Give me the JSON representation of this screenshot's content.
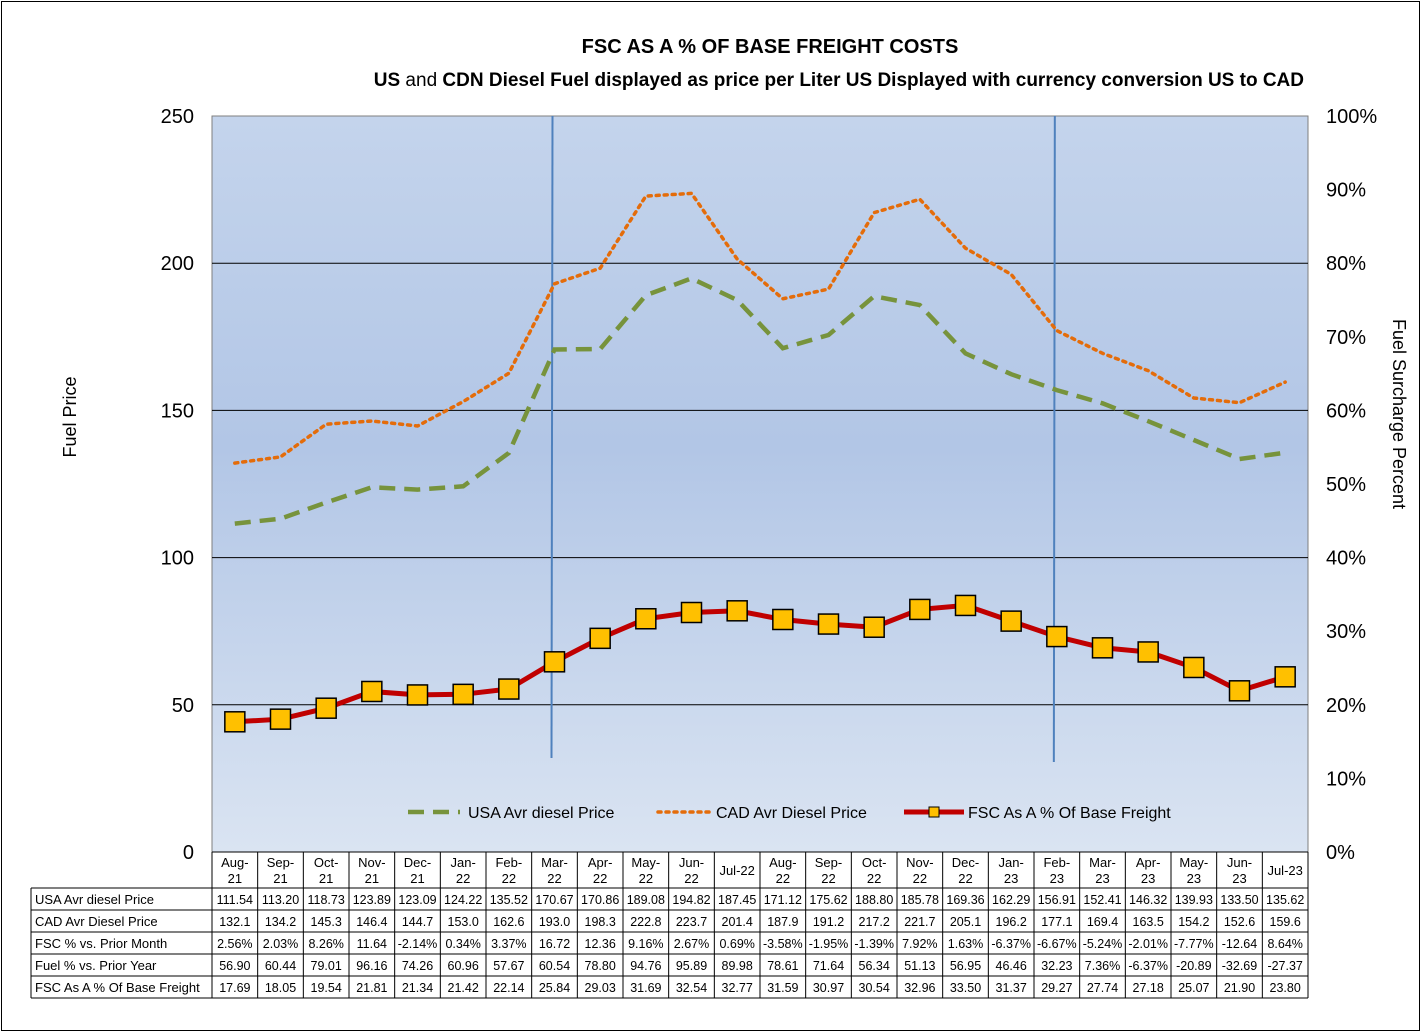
{
  "chart_data": {
    "type": "line",
    "title": "FSC AS A % OF BASE FREIGHT COSTS",
    "subtitle_parts": [
      "US",
      " and ",
      "CDN Diesel Fuel displayed as price per Liter US Displayed with currency conversion US to CAD"
    ],
    "ylabel": "Fuel Price",
    "y2label": "Fuel Surcharge Percent",
    "ylim": [
      0,
      250
    ],
    "y2lim": [
      0,
      100
    ],
    "yticks": [
      "0",
      "50",
      "100",
      "150",
      "200",
      "250"
    ],
    "y2ticks": [
      "0%",
      "10%",
      "20%",
      "30%",
      "40%",
      "50%",
      "60%",
      "70%",
      "80%",
      "90%",
      "100%"
    ],
    "grid": true,
    "legend_position": "bottom-inside",
    "categories": [
      [
        "Aug-",
        "21"
      ],
      [
        "Sep-",
        "21"
      ],
      [
        "Oct-",
        "21"
      ],
      [
        "Nov-",
        "21"
      ],
      [
        "Dec-",
        "21"
      ],
      [
        "Jan-",
        "22"
      ],
      [
        "Feb-",
        "22"
      ],
      [
        "Mar-",
        "22"
      ],
      [
        "Apr-",
        "22"
      ],
      [
        "May-",
        "22"
      ],
      [
        "Jun-",
        "22"
      ],
      [
        "Jul-22"
      ],
      [
        "Aug-",
        "22"
      ],
      [
        "Sep-",
        "22"
      ],
      [
        "Oct-",
        "22"
      ],
      [
        "Nov-",
        "22"
      ],
      [
        "Dec-",
        "22"
      ],
      [
        "Jan-",
        "23"
      ],
      [
        "Feb-",
        "23"
      ],
      [
        "Mar-",
        "23"
      ],
      [
        "Apr-",
        "23"
      ],
      [
        "May-",
        "23"
      ],
      [
        "Jun-",
        "23"
      ],
      [
        "Jul-23"
      ]
    ],
    "vlines_at_category_index": [
      7,
      18
    ],
    "series": [
      {
        "name": "USA Avr diesel Price",
        "axis": "left",
        "style": "dashed",
        "color": "#77933c",
        "values": [
          111.54,
          113.2,
          118.73,
          123.89,
          123.09,
          124.22,
          135.52,
          170.67,
          170.86,
          189.08,
          194.82,
          187.45,
          171.12,
          175.62,
          188.8,
          185.78,
          169.36,
          162.29,
          156.91,
          152.41,
          146.32,
          139.93,
          133.5,
          135.62
        ]
      },
      {
        "name": "CAD Avr Diesel Price",
        "axis": "left",
        "style": "dotted",
        "color": "#e46c0a",
        "values": [
          132.1,
          134.2,
          145.3,
          146.4,
          144.7,
          153.0,
          162.6,
          193.0,
          198.3,
          222.8,
          223.7,
          201.4,
          187.9,
          191.2,
          217.2,
          221.7,
          205.1,
          196.2,
          177.1,
          169.4,
          163.5,
          154.2,
          152.6,
          159.6
        ]
      },
      {
        "name": "FSC As A % Of Base Freight",
        "axis": "right",
        "style": "solid-marker",
        "color": "#c00000",
        "marker_color": "#ffc000",
        "values": [
          17.69,
          18.05,
          19.54,
          21.81,
          21.34,
          21.42,
          22.14,
          25.84,
          29.03,
          31.69,
          32.54,
          32.77,
          31.59,
          30.97,
          30.54,
          32.96,
          33.5,
          31.37,
          29.27,
          27.74,
          27.18,
          25.07,
          21.9,
          23.8
        ]
      }
    ],
    "table": {
      "rows": [
        {
          "label": "USA Avr diesel Price",
          "cells": [
            "111.54",
            "113.20",
            "118.73",
            "123.89",
            "123.09",
            "124.22",
            "135.52",
            "170.67",
            "170.86",
            "189.08",
            "194.82",
            "187.45",
            "171.12",
            "175.62",
            "188.80",
            "185.78",
            "169.36",
            "162.29",
            "156.91",
            "152.41",
            "146.32",
            "139.93",
            "133.50",
            "135.62"
          ]
        },
        {
          "label": "CAD Avr Diesel Price",
          "cells": [
            "132.1",
            "134.2",
            "145.3",
            "146.4",
            "144.7",
            "153.0",
            "162.6",
            "193.0",
            "198.3",
            "222.8",
            "223.7",
            "201.4",
            "187.9",
            "191.2",
            "217.2",
            "221.7",
            "205.1",
            "196.2",
            "177.1",
            "169.4",
            "163.5",
            "154.2",
            "152.6",
            "159.6"
          ]
        },
        {
          "label": "FSC % vs. Prior Month",
          "cells": [
            "2.56%",
            "2.03%",
            "8.26%",
            "11.64",
            "-2.14%",
            "0.34%",
            "3.37%",
            "16.72",
            "12.36",
            "9.16%",
            "2.67%",
            "0.69%",
            "-3.58%",
            "-1.95%",
            "-1.39%",
            "7.92%",
            "1.63%",
            "-6.37%",
            "-6.67%",
            "-5.24%",
            "-2.01%",
            "-7.77%",
            "-12.64",
            "8.64%"
          ]
        },
        {
          "label": "Fuel % vs. Prior Year",
          "cells": [
            "56.90",
            "60.44",
            "79.01",
            "96.16",
            "74.26",
            "60.96",
            "57.67",
            "60.54",
            "78.80",
            "94.76",
            "95.89",
            "89.98",
            "78.61",
            "71.64",
            "56.34",
            "51.13",
            "56.95",
            "46.46",
            "32.23",
            "7.36%",
            "-6.37%",
            "-20.89",
            "-32.69",
            "-27.37"
          ]
        },
        {
          "label": "FSC As A % Of Base Freight",
          "cells": [
            "17.69",
            "18.05",
            "19.54",
            "21.81",
            "21.34",
            "21.42",
            "22.14",
            "25.84",
            "29.03",
            "31.69",
            "32.54",
            "32.77",
            "31.59",
            "30.97",
            "30.54",
            "32.96",
            "33.50",
            "31.37",
            "29.27",
            "27.74",
            "27.18",
            "25.07",
            "21.90",
            "23.80"
          ]
        }
      ]
    }
  }
}
